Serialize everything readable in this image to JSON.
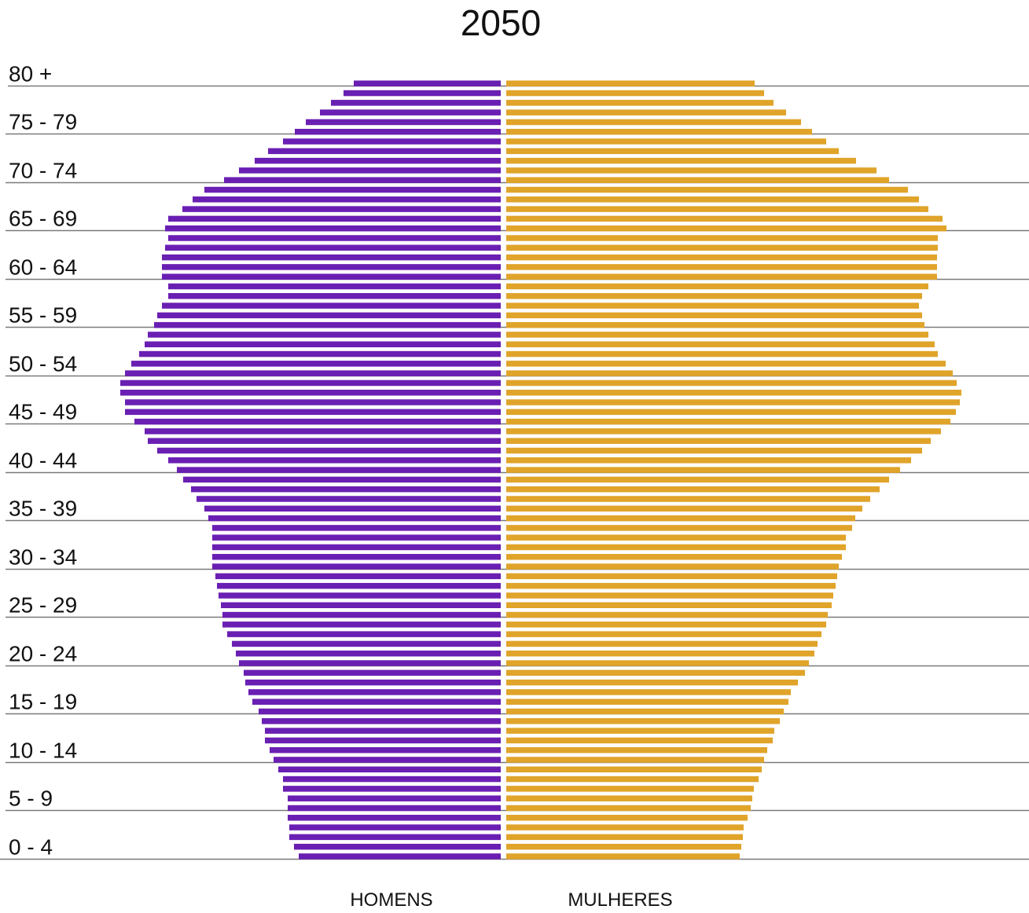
{
  "chart_data": {
    "type": "bar",
    "title": "2050",
    "orientation": "horizontal-population-pyramid",
    "age_group_labels": [
      "80 +",
      "75 - 79",
      "70 - 74",
      "65 - 69",
      "60 - 64",
      "55 - 59",
      "50 - 54",
      "45 - 49",
      "40 - 44",
      "35 - 39",
      "30 - 34",
      "25 - 29",
      "20 - 24",
      "15 - 19",
      "10 - 14",
      "5 - 9",
      "0 - 4"
    ],
    "single_year_ages_top_to_bottom": [
      80,
      79,
      78,
      77,
      76,
      75,
      74,
      73,
      72,
      71,
      70,
      69,
      68,
      67,
      66,
      65,
      64,
      63,
      62,
      61,
      60,
      59,
      58,
      57,
      56,
      55,
      54,
      53,
      52,
      51,
      50,
      49,
      48,
      47,
      46,
      45,
      44,
      43,
      42,
      41,
      40,
      39,
      38,
      37,
      36,
      35,
      34,
      33,
      32,
      31,
      30,
      29,
      28,
      27,
      26,
      25,
      24,
      23,
      22,
      21,
      20,
      19,
      18,
      17,
      16,
      15,
      14,
      13,
      12,
      11,
      10,
      9,
      8,
      7,
      6,
      5,
      4,
      3,
      2,
      1,
      0
    ],
    "series": [
      {
        "name": "HOMENS",
        "color": "#6a1fb3",
        "values": [
          187,
          200,
          216,
          230,
          248,
          262,
          277,
          296,
          313,
          333,
          352,
          377,
          392,
          405,
          423,
          427,
          423,
          427,
          431,
          431,
          431,
          423,
          423,
          431,
          437,
          441,
          449,
          453,
          460,
          470,
          478,
          484,
          484,
          478,
          478,
          466,
          453,
          449,
          437,
          423,
          412,
          404,
          394,
          387,
          377,
          372,
          367,
          367,
          367,
          367,
          367,
          363,
          361,
          359,
          356,
          354,
          354,
          348,
          342,
          337,
          333,
          327,
          325,
          321,
          316,
          308,
          304,
          300,
          300,
          294,
          289,
          283,
          277,
          277,
          271,
          271,
          271,
          269,
          269,
          263,
          257
        ]
      },
      {
        "name": "MULHERES",
        "color": "#e0a42a",
        "values": [
          316,
          328,
          340,
          356,
          375,
          389,
          407,
          423,
          445,
          471,
          487,
          511,
          525,
          537,
          555,
          560,
          549,
          549,
          548,
          548,
          548,
          537,
          529,
          525,
          529,
          532,
          537,
          545,
          549,
          559,
          568,
          573,
          579,
          577,
          572,
          565,
          553,
          540,
          529,
          515,
          501,
          487,
          475,
          463,
          453,
          444,
          440,
          432,
          432,
          427,
          423,
          421,
          419,
          416,
          414,
          409,
          407,
          401,
          396,
          392,
          385,
          380,
          371,
          362,
          359,
          353,
          348,
          341,
          339,
          332,
          328,
          325,
          321,
          315,
          313,
          311,
          307,
          302,
          301,
          299,
          297
        ]
      }
    ],
    "legend": [
      "HOMENS",
      "MULHERES"
    ],
    "legend_placement": "bottom",
    "grid": true,
    "xlabel": "",
    "ylabel": ""
  }
}
